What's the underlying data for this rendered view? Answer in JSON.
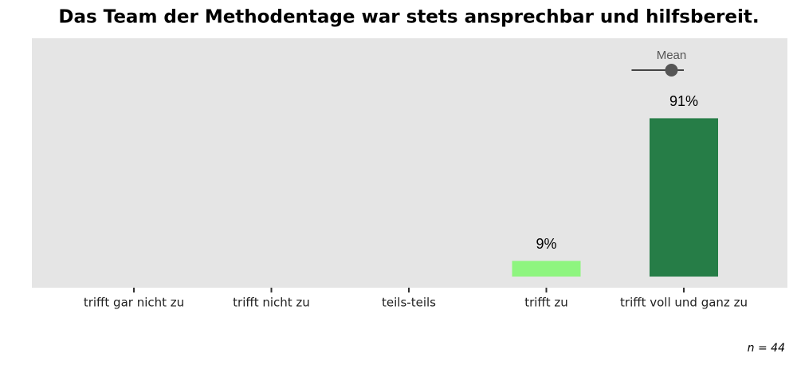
{
  "chart_data": {
    "type": "bar",
    "title": "Das Team der Methodentage war stets ansprechbar und hilfsbereit.",
    "categories": [
      "trifft gar nicht zu",
      "trifft nicht zu",
      "teils-teils",
      "trifft zu",
      "trifft voll und ganz zu"
    ],
    "values": [
      0,
      0,
      0,
      9,
      91
    ],
    "value_labels": [
      null,
      null,
      null,
      "9%",
      "91%"
    ],
    "colors": [
      "#8ef57f",
      "#8ef57f",
      "#8ef57f",
      "#8ef57f",
      "#267d47"
    ],
    "ylim": [
      -6.4,
      137
    ],
    "mean": {
      "label": "Mean",
      "value": 4.91,
      "low": 4.62,
      "high": 5.0
    },
    "caption": "n = 44"
  }
}
